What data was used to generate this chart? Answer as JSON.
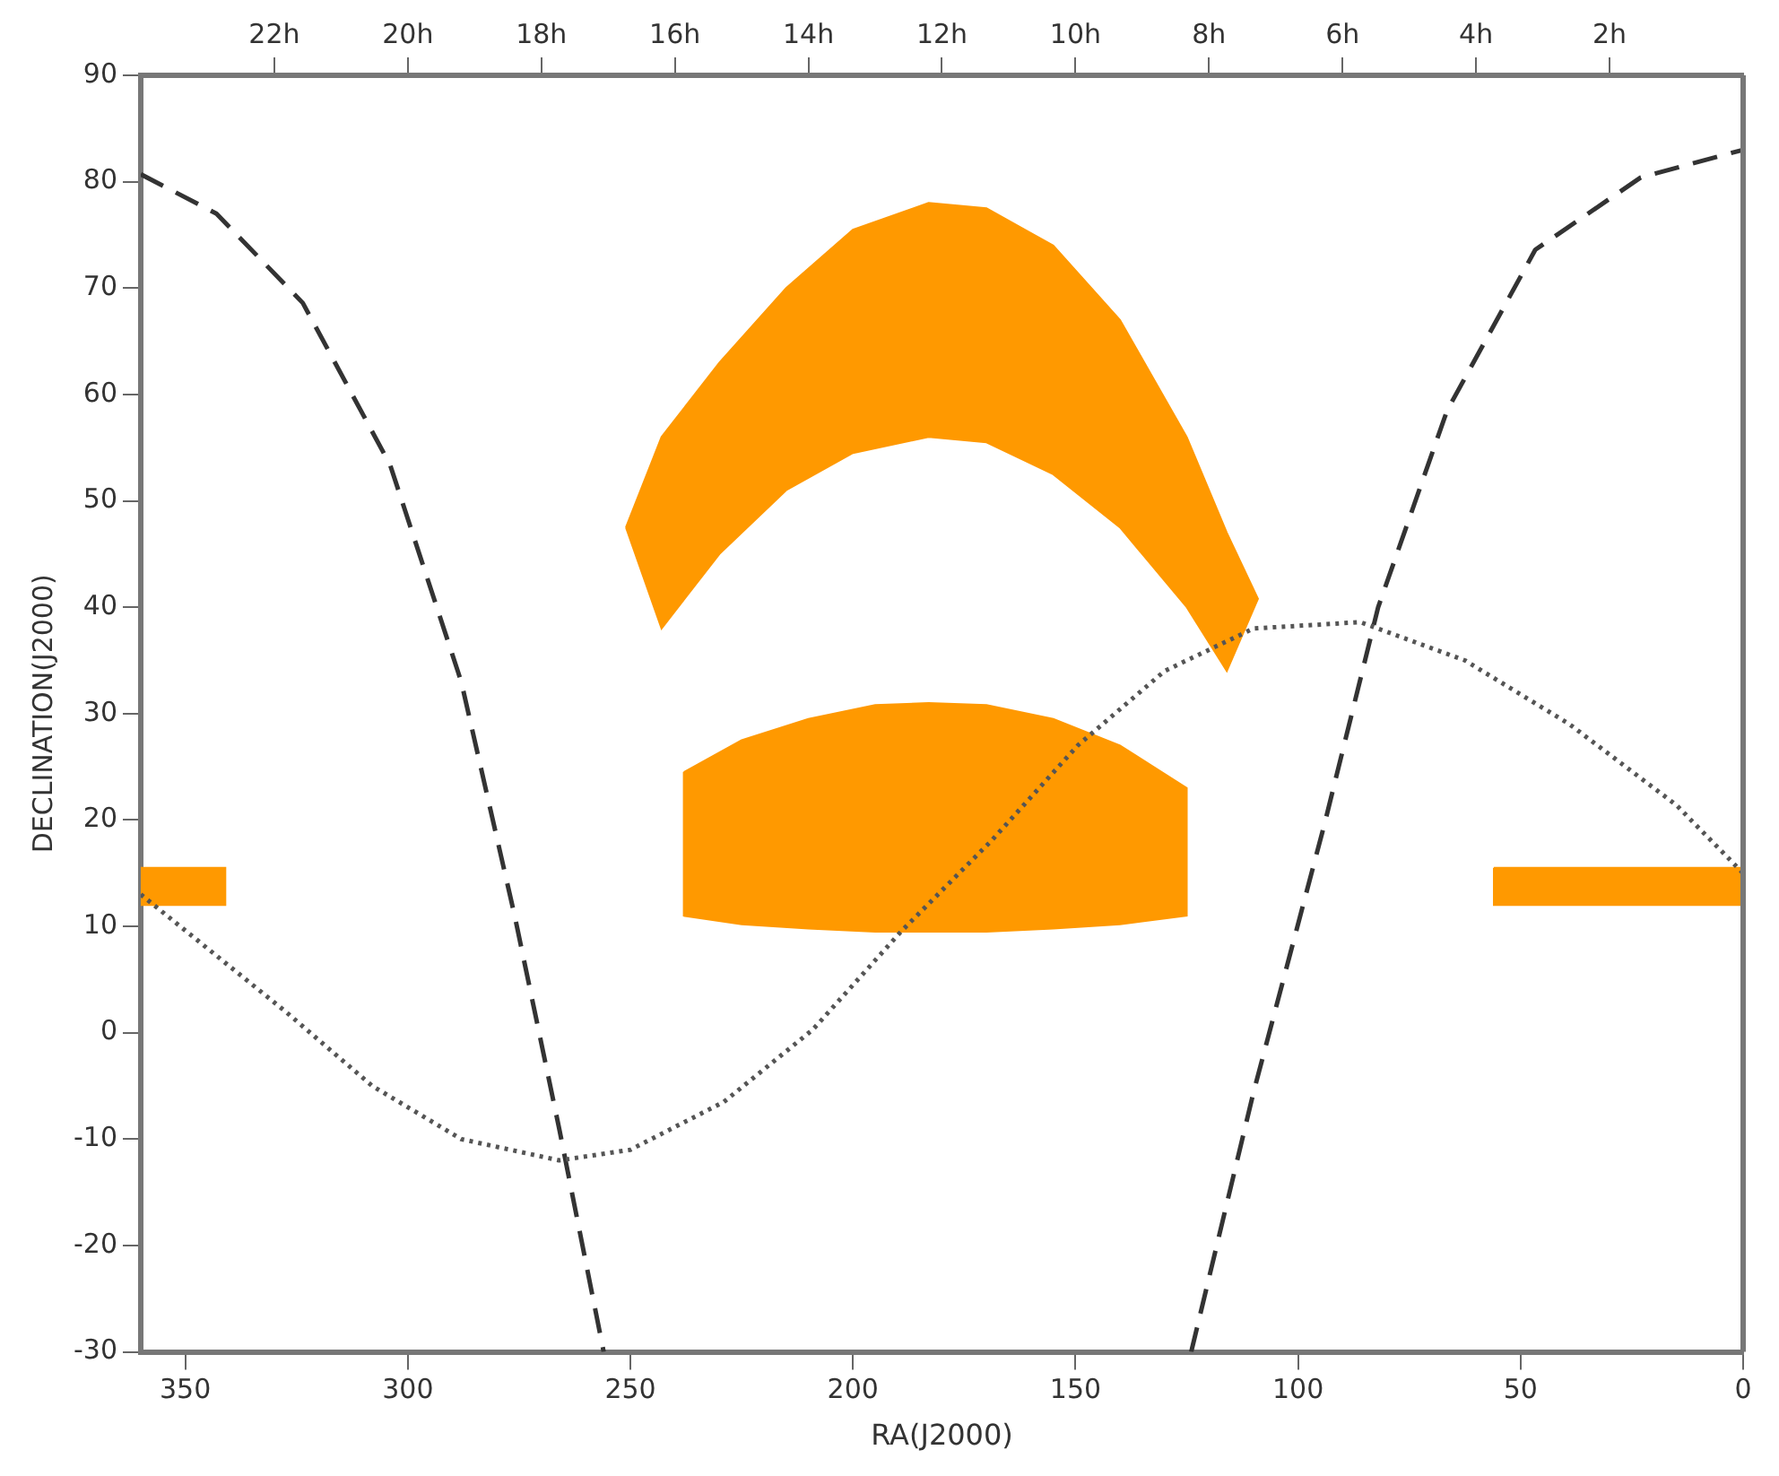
{
  "chart_data": {
    "type": "line",
    "xlabel": "RA(J2000)",
    "ylabel": "DECLINATION(J2000)",
    "xlim": [
      360,
      0
    ],
    "xticks": [
      350,
      300,
      250,
      200,
      150,
      100,
      50,
      0
    ],
    "x2lim": [
      24,
      0
    ],
    "x2ticks": [
      {
        "value": 22,
        "label": "22h"
      },
      {
        "value": 20,
        "label": "20h"
      },
      {
        "value": 18,
        "label": "18h"
      },
      {
        "value": 16,
        "label": "16h"
      },
      {
        "value": 14,
        "label": "14h"
      },
      {
        "value": 12,
        "label": "12h"
      },
      {
        "value": 10,
        "label": "10h"
      },
      {
        "value": 8,
        "label": "8h"
      },
      {
        "value": 6,
        "label": "6h"
      },
      {
        "value": 4,
        "label": "4h"
      },
      {
        "value": 2,
        "label": "2h"
      }
    ],
    "ylim": [
      -30,
      90
    ],
    "yticks": [
      -30,
      -20,
      -10,
      0,
      10,
      20,
      30,
      40,
      50,
      60,
      70,
      80,
      90
    ],
    "grid": false,
    "legend": false,
    "marker": "none",
    "series": [
      {
        "type": "area",
        "color": "#ff9900",
        "x": [
          251,
          243,
          230,
          215,
          200,
          183,
          170,
          155,
          140,
          125,
          116,
          109,
          116,
          125,
          140,
          155,
          170,
          183,
          200,
          215,
          230,
          243,
          251
        ],
        "values": [
          47.5,
          56,
          63,
          70,
          75.5,
          78,
          77.5,
          74,
          67,
          56,
          47,
          40.8,
          34,
          40,
          47.5,
          52.5,
          55.5,
          56,
          54.5,
          51,
          45,
          38,
          47.5
        ]
      },
      {
        "type": "area",
        "color": "#ff9900",
        "x": [
          238,
          225,
          210,
          195,
          183,
          170,
          155,
          140,
          125,
          125,
          140,
          155,
          170,
          183,
          195,
          210,
          225,
          238,
          238
        ],
        "values": [
          24.5,
          27.5,
          29.5,
          30.8,
          31,
          30.8,
          29.5,
          27,
          23,
          11,
          10.2,
          9.8,
          9.5,
          9.5,
          9.5,
          9.8,
          10.2,
          11,
          24.5
        ]
      },
      {
        "type": "area",
        "color": "#ff9900",
        "x": [
          360,
          341,
          341,
          360,
          360
        ],
        "values": [
          15.5,
          15.5,
          12,
          12,
          15.5
        ]
      },
      {
        "type": "area",
        "color": "#ff9900",
        "x": [
          56,
          0,
          0,
          56,
          56
        ],
        "values": [
          15.5,
          15.5,
          12,
          12,
          15.5
        ]
      },
      {
        "color": "#555555",
        "line_style": "dotted",
        "x": [
          360,
          327.5,
          308,
          288,
          266,
          250,
          229,
          209,
          189,
          169,
          149.5,
          130,
          110,
          86,
          62.5,
          39,
          15,
          0
        ],
        "values": [
          13,
          2,
          -5,
          -10,
          -12,
          -11,
          -6.5,
          0.3,
          9.6,
          18,
          27,
          34,
          38,
          38.6,
          35,
          29,
          21.4,
          15
        ]
      },
      {
        "color": "#333333",
        "line_style": "dashed",
        "x": [
          360,
          343,
          323.6,
          304,
          288,
          276,
          266,
          256,
          190,
          124,
          110,
          94,
          82,
          66.5,
          46.7,
          23,
          0
        ],
        "values": [
          80.7,
          77,
          68.6,
          53.4,
          33,
          11,
          -9,
          -30,
          null,
          -30,
          -5.6,
          19.7,
          40,
          58.5,
          73.6,
          80.4,
          83
        ]
      }
    ]
  }
}
